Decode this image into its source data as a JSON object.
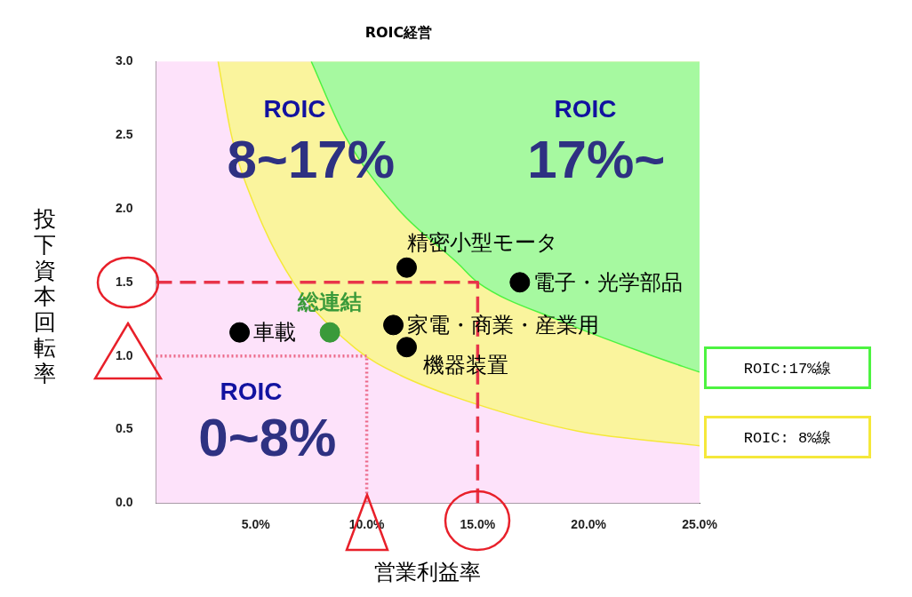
{
  "chart_data": {
    "type": "scatter",
    "title": "ROIC経営",
    "xlabel": "営業利益率",
    "ylabel": "投下資本回転率",
    "xlim": [
      0.5,
      25
    ],
    "ylim": [
      0,
      3
    ],
    "xticks": [
      {
        "value": 5,
        "label": "5.0%"
      },
      {
        "value": 10,
        "label": "10.0%"
      },
      {
        "value": 15,
        "label": "15.0%"
      },
      {
        "value": 20,
        "label": "20.0%"
      },
      {
        "value": 25,
        "label": "25.0%"
      }
    ],
    "yticks": [
      {
        "value": 0,
        "label": "0.0"
      },
      {
        "value": 0.5,
        "label": "0.5"
      },
      {
        "value": 1,
        "label": "1.0"
      },
      {
        "value": 1.5,
        "label": "1.5"
      },
      {
        "value": 2,
        "label": "2.0"
      },
      {
        "value": 2.5,
        "label": "2.5"
      },
      {
        "value": 3,
        "label": "3.0"
      }
    ],
    "grid": false,
    "legend": "right",
    "series": [
      {
        "name": "ROIC:17%線",
        "type": "line",
        "color": "#4df341",
        "x": [
          7.5,
          9,
          11.4,
          14.1,
          15,
          18.7,
          22.7,
          25
        ],
        "values": [
          3.0,
          2.5,
          2.0,
          1.63,
          1.5,
          1.24,
          1.01,
          0.89
        ],
        "lower": [
          3.0,
          2.5,
          2.0,
          1.63,
          1.5,
          1.24,
          1.01,
          0.89
        ],
        "upper": [
          3,
          3,
          3,
          3,
          3,
          3,
          3,
          3
        ]
      },
      {
        "name": "ROIC: 8%線",
        "type": "line",
        "color": "#f5e83a",
        "x": [
          3.3,
          3.9,
          5,
          6.7,
          9.5,
          11.5,
          15,
          19.5,
          25
        ],
        "values": [
          3.0,
          2.5,
          2.0,
          1.5,
          1.05,
          0.87,
          0.67,
          0.49,
          0.39
        ],
        "lower": [
          3.0,
          2.5,
          2.0,
          1.5,
          1.05,
          0.87,
          0.67,
          0.49,
          0.39
        ],
        "upper": [
          3,
          3,
          3,
          3,
          3,
          3,
          3,
          3,
          3
        ]
      },
      {
        "type": "line",
        "line_style": "dashed",
        "color": "#e8344a",
        "x": [
          0.5,
          15,
          15
        ],
        "values": [
          1.5,
          1.5,
          0
        ]
      },
      {
        "type": "line",
        "line_style": "dotted",
        "color": "#ec6a8a",
        "x": [
          0.5,
          10,
          10
        ],
        "values": [
          1.0,
          1.0,
          0
        ]
      },
      {
        "name": "車載",
        "marker": "circle",
        "color": "#000000",
        "x": [
          4.27
        ],
        "values": [
          1.16
        ]
      },
      {
        "name": "総連結",
        "marker": "circle",
        "color": "#3a9a3a",
        "x": [
          8.34
        ],
        "values": [
          1.16
        ]
      },
      {
        "name": "精密小型モータ",
        "marker": "circle",
        "color": "#000000",
        "x": [
          11.8
        ],
        "values": [
          1.6
        ]
      },
      {
        "name": "家電・商業・産業用",
        "marker": "circle",
        "color": "#000000",
        "x": [
          11.2
        ],
        "values": [
          1.21
        ]
      },
      {
        "name": "機器装置",
        "marker": "circle",
        "color": "#000000",
        "x": [
          11.8
        ],
        "values": [
          1.06
        ]
      },
      {
        "name": "電子・光学部品",
        "marker": "circle",
        "color": "#000000",
        "x": [
          16.9
        ],
        "values": [
          1.5
        ]
      }
    ],
    "annotations": [
      "ROIC",
      "8~17%",
      "ROIC",
      "17%~",
      "ROIC",
      "0~8%"
    ]
  }
}
